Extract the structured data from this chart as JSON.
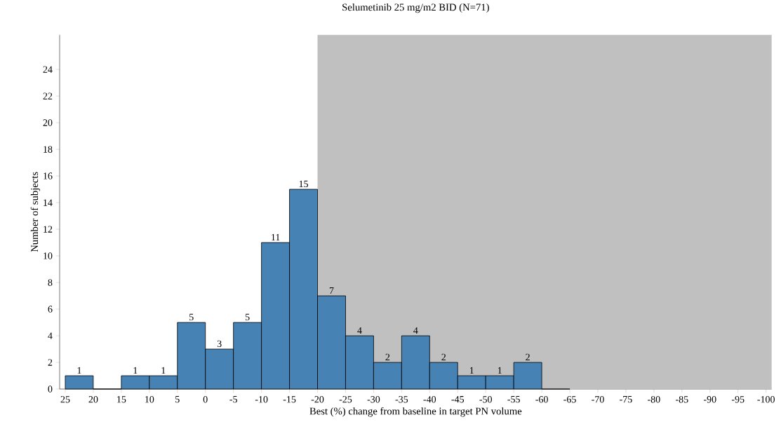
{
  "chart_data": {
    "type": "histogram",
    "title": "Selumetinib 25 mg/m2 BID (N=71)",
    "xlabel": "Best (%) change from baseline in target PN volume",
    "ylabel": "Number of subjects",
    "bins": [
      25,
      20,
      15,
      10,
      5,
      0,
      -5,
      -10,
      -15,
      -20,
      -25,
      -30,
      -35,
      -40,
      -45,
      -50,
      -55,
      -60,
      -65
    ],
    "values": [
      1,
      0,
      1,
      1,
      5,
      3,
      5,
      11,
      15,
      7,
      4,
      2,
      4,
      2,
      1,
      1,
      2,
      0
    ],
    "value_labels": [
      "1",
      null,
      "1",
      "1",
      "5",
      "3",
      "5",
      "11",
      "15",
      "7",
      "4",
      "2",
      "4",
      "2",
      "1",
      "1",
      "2",
      null
    ],
    "color": "#4682b4",
    "xlim": [
      26,
      -101
    ],
    "ylim": [
      0,
      26.6
    ],
    "xticks": [
      25,
      20,
      15,
      10,
      5,
      0,
      -5,
      -10,
      -15,
      -20,
      -25,
      -30,
      -35,
      -40,
      -45,
      -50,
      -55,
      -60,
      -65,
      -70,
      -75,
      -80,
      -85,
      -90,
      -95,
      -100
    ],
    "yticks": [
      0,
      2,
      4,
      6,
      8,
      10,
      12,
      14,
      16,
      18,
      20,
      22,
      24
    ],
    "bands": [
      {
        "axis": "x",
        "from": -20,
        "to": -101,
        "color": "#c0c0c0"
      }
    ]
  }
}
